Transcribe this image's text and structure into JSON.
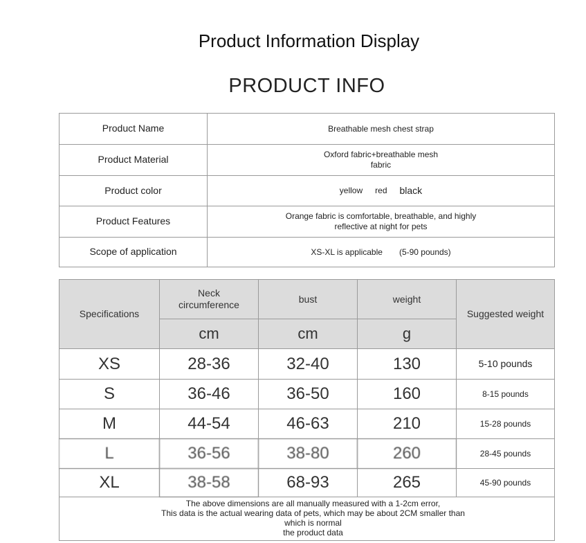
{
  "page_title": "Product Information Display",
  "section_title": "PRODUCT INFO",
  "info_table": [
    {
      "label": "Product Name",
      "value": "Breathable mesh chest strap"
    },
    {
      "label": "Product Material",
      "value": "Oxford fabric+breathable mesh fabric"
    },
    {
      "label": "Product color",
      "colors": [
        "yellow",
        "red",
        "black"
      ]
    },
    {
      "label": "Product Features",
      "value": "Orange fabric is comfortable, breathable, and highly reflective at night for pets"
    },
    {
      "label": "Scope of application",
      "value": "XS-XL is applicable",
      "value2": "(5-90 pounds)"
    }
  ],
  "size_table": {
    "headers": {
      "spec": "Specifications",
      "neck": "Neck circumference",
      "bust": "bust",
      "weight": "weight",
      "suggested": "Suggested weight",
      "neck_unit": "cm",
      "bust_unit": "cm",
      "weight_unit": "g"
    },
    "rows": [
      {
        "size": "XS",
        "neck": "28-36",
        "bust": "32-40",
        "weight": "130",
        "suggested": "5-10 pounds"
      },
      {
        "size": "S",
        "neck": "36-46",
        "bust": "36-50",
        "weight": "160",
        "suggested": "8-15 pounds"
      },
      {
        "size": "M",
        "neck": "44-54",
        "bust": "46-63",
        "weight": "210",
        "suggested": "15-28 pounds"
      },
      {
        "size": "L",
        "neck": "36-56",
        "bust": "38-80",
        "weight": "260",
        "suggested": "28-45 pounds"
      },
      {
        "size": "XL",
        "neck": "38-58",
        "bust": "68-93",
        "weight": "265",
        "suggested": "45-90 pounds"
      }
    ],
    "footer": [
      "The above dimensions are all manually measured with a 1-2cm error,",
      "This data is the actual wearing data of pets, which may be about 2CM smaller than",
      "which is normal",
      "the product data"
    ]
  }
}
